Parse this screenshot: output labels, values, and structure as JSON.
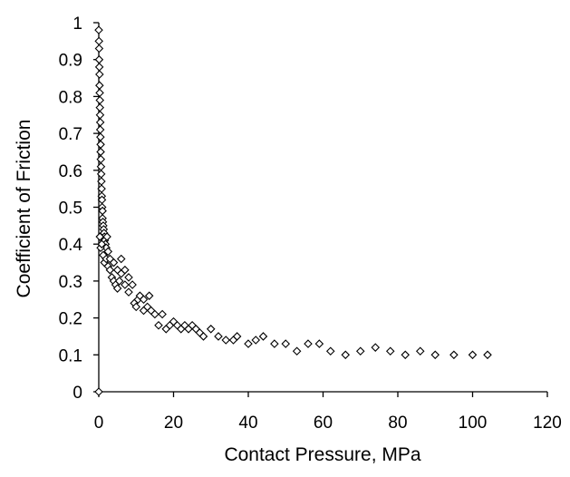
{
  "chart_data": {
    "type": "scatter",
    "title": "",
    "xlabel": "Contact Pressure, MPa",
    "ylabel": "Coefficient of Friction",
    "xlim": [
      0,
      120
    ],
    "ylim": [
      0,
      1
    ],
    "xticks": [
      0,
      20,
      40,
      60,
      80,
      100,
      120
    ],
    "yticks": [
      0,
      0.1,
      0.2,
      0.3,
      0.4,
      0.5,
      0.6,
      0.7,
      0.8,
      0.9,
      1
    ],
    "ytick_labels": [
      "0",
      "0.1",
      "0.2",
      "0.3",
      "0.4",
      "0.5",
      "0.6",
      "0.7",
      "0.8",
      "0.9",
      "1"
    ],
    "xtick_labels": [
      "0",
      "20",
      "40",
      "60",
      "80",
      "100",
      "120"
    ],
    "grid": false,
    "legend": "none",
    "marker": "diamond-open",
    "marker_color": "#000000",
    "series": [
      {
        "points": [
          [
            0.0,
            0.0
          ],
          [
            0.0,
            0.98
          ],
          [
            0.05,
            0.95
          ],
          [
            0.1,
            0.93
          ],
          [
            0.1,
            0.9
          ],
          [
            0.15,
            0.88
          ],
          [
            0.2,
            0.86
          ],
          [
            0.2,
            0.83
          ],
          [
            0.25,
            0.81
          ],
          [
            0.3,
            0.79
          ],
          [
            0.3,
            0.77
          ],
          [
            0.35,
            0.75
          ],
          [
            0.4,
            0.73
          ],
          [
            0.4,
            0.71
          ],
          [
            0.45,
            0.69
          ],
          [
            0.5,
            0.67
          ],
          [
            0.5,
            0.65
          ],
          [
            0.55,
            0.63
          ],
          [
            0.6,
            0.61
          ],
          [
            0.65,
            0.59
          ],
          [
            0.7,
            0.57
          ],
          [
            0.75,
            0.55
          ],
          [
            0.8,
            0.53
          ],
          [
            0.85,
            0.52
          ],
          [
            0.9,
            0.5
          ],
          [
            1.0,
            0.49
          ],
          [
            1.0,
            0.47
          ],
          [
            1.1,
            0.46
          ],
          [
            1.2,
            0.45
          ],
          [
            1.3,
            0.44
          ],
          [
            1.4,
            0.43
          ],
          [
            1.5,
            0.42
          ],
          [
            1.6,
            0.41
          ],
          [
            1.8,
            0.4
          ],
          [
            2.0,
            0.39
          ],
          [
            2.2,
            0.42
          ],
          [
            2.5,
            0.38
          ],
          [
            0.5,
            0.39
          ],
          [
            0.3,
            0.42
          ],
          [
            0.8,
            0.4
          ],
          [
            1.2,
            0.37
          ],
          [
            1.5,
            0.35
          ],
          [
            2.0,
            0.36
          ],
          [
            2.5,
            0.34
          ],
          [
            3.0,
            0.33
          ],
          [
            3.0,
            0.36
          ],
          [
            3.5,
            0.31
          ],
          [
            4.0,
            0.3
          ],
          [
            4.0,
            0.35
          ],
          [
            4.5,
            0.29
          ],
          [
            5.0,
            0.28
          ],
          [
            5.0,
            0.33
          ],
          [
            5.5,
            0.3
          ],
          [
            6.0,
            0.32
          ],
          [
            6.0,
            0.36
          ],
          [
            7.0,
            0.29
          ],
          [
            7.0,
            0.33
          ],
          [
            8.0,
            0.27
          ],
          [
            8.0,
            0.31
          ],
          [
            9.0,
            0.29
          ],
          [
            9.5,
            0.24
          ],
          [
            10.0,
            0.23
          ],
          [
            10.5,
            0.25
          ],
          [
            11.0,
            0.26
          ],
          [
            12.0,
            0.25
          ],
          [
            12.0,
            0.22
          ],
          [
            13.0,
            0.23
          ],
          [
            13.5,
            0.26
          ],
          [
            14.0,
            0.22
          ],
          [
            15.0,
            0.21
          ],
          [
            16.0,
            0.18
          ],
          [
            17.0,
            0.21
          ],
          [
            18.0,
            0.17
          ],
          [
            19.0,
            0.18
          ],
          [
            20.0,
            0.19
          ],
          [
            21.0,
            0.18
          ],
          [
            22.0,
            0.17
          ],
          [
            23.0,
            0.18
          ],
          [
            24.0,
            0.17
          ],
          [
            25.0,
            0.18
          ],
          [
            26.0,
            0.17
          ],
          [
            27.0,
            0.16
          ],
          [
            28.0,
            0.15
          ],
          [
            30.0,
            0.17
          ],
          [
            32.0,
            0.15
          ],
          [
            34.0,
            0.14
          ],
          [
            36.0,
            0.14
          ],
          [
            37.0,
            0.15
          ],
          [
            40.0,
            0.13
          ],
          [
            42.0,
            0.14
          ],
          [
            44.0,
            0.15
          ],
          [
            47.0,
            0.13
          ],
          [
            50.0,
            0.13
          ],
          [
            53.0,
            0.11
          ],
          [
            56.0,
            0.13
          ],
          [
            59.0,
            0.13
          ],
          [
            62.0,
            0.11
          ],
          [
            66.0,
            0.1
          ],
          [
            70.0,
            0.11
          ],
          [
            74.0,
            0.12
          ],
          [
            78.0,
            0.11
          ],
          [
            82.0,
            0.1
          ],
          [
            86.0,
            0.11
          ],
          [
            90.0,
            0.1
          ],
          [
            95.0,
            0.1
          ],
          [
            100.0,
            0.1
          ],
          [
            104.0,
            0.1
          ]
        ]
      }
    ]
  }
}
